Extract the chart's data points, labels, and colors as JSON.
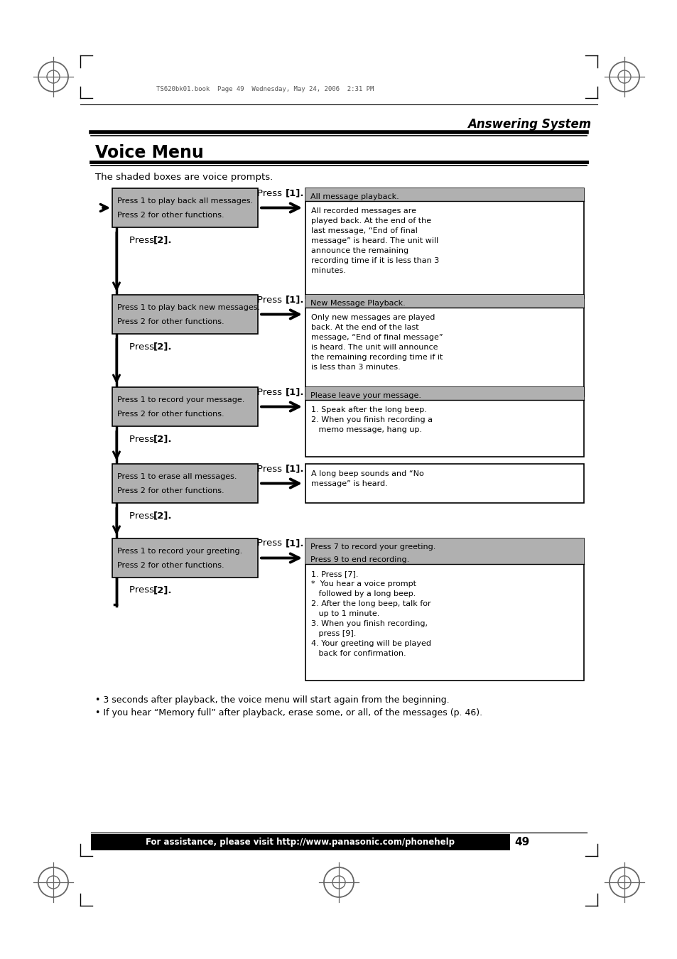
{
  "title": "Voice Menu",
  "subtitle": "The shaded boxes are voice prompts.",
  "header_right": "Answering System",
  "page_header": "TS620bk01.book  Page 49  Wednesday, May 24, 2006  2:31 PM",
  "footer_text": "For assistance, please visit http://www.panasonic.com/phonehelp",
  "footer_page": "49",
  "bullet1": "3 seconds after playback, the voice menu will start again from the beginning.",
  "bullet2": "If you hear “Memory full” after playback, erase some, or all, of the messages (p. 46).",
  "rows": [
    {
      "left_line1": "Press 1 to play back all messages.",
      "left_line2": "Press 2 for other functions.",
      "right_header": "All message playback.",
      "right_header_shaded": true,
      "right_body": [
        "All recorded messages are",
        "played back. At the end of the",
        "last message, “End of final",
        "message” is heard. The unit will",
        "announce the remaining",
        "recording time if it is less than 3",
        "minutes."
      ]
    },
    {
      "left_line1": "Press 1 to play back new messages.",
      "left_line2": "Press 2 for other functions.",
      "right_header": "New Message Playback.",
      "right_header_shaded": true,
      "right_body": [
        "Only new messages are played",
        "back. At the end of the last",
        "message, “End of final message”",
        "is heard. The unit will announce",
        "the remaining recording time if it",
        "is less than 3 minutes."
      ]
    },
    {
      "left_line1": "Press 1 to record your message.",
      "left_line2": "Press 2 for other functions.",
      "right_header": "Please leave your message.",
      "right_header_shaded": true,
      "right_body": [
        "1. Speak after the long beep.",
        "2. When you finish recording a",
        "   memo message, hang up."
      ]
    },
    {
      "left_line1": "Press 1 to erase all messages.",
      "left_line2": "Press 2 for other functions.",
      "right_header": "",
      "right_header_shaded": false,
      "right_body": [
        "A long beep sounds and “No",
        "message” is heard."
      ]
    },
    {
      "left_line1": "Press 1 to record your greeting.",
      "left_line2": "Press 2 for other functions.",
      "right_header": "Press 7 to record your greeting.\nPress 9 to end recording.",
      "right_header_shaded": true,
      "right_body": [
        "1. Press [7].",
        "*  You hear a voice prompt",
        "   followed by a long beep.",
        "2. After the long beep, talk for",
        "   up to 1 minute.",
        "3. When you finish recording,",
        "   press [9].",
        "4. Your greeting will be played",
        "   back for confirmation."
      ]
    }
  ],
  "bg_color": "#ffffff",
  "gray_color": "#b0b0b0",
  "border_color": "#000000",
  "line_color": "#000000"
}
